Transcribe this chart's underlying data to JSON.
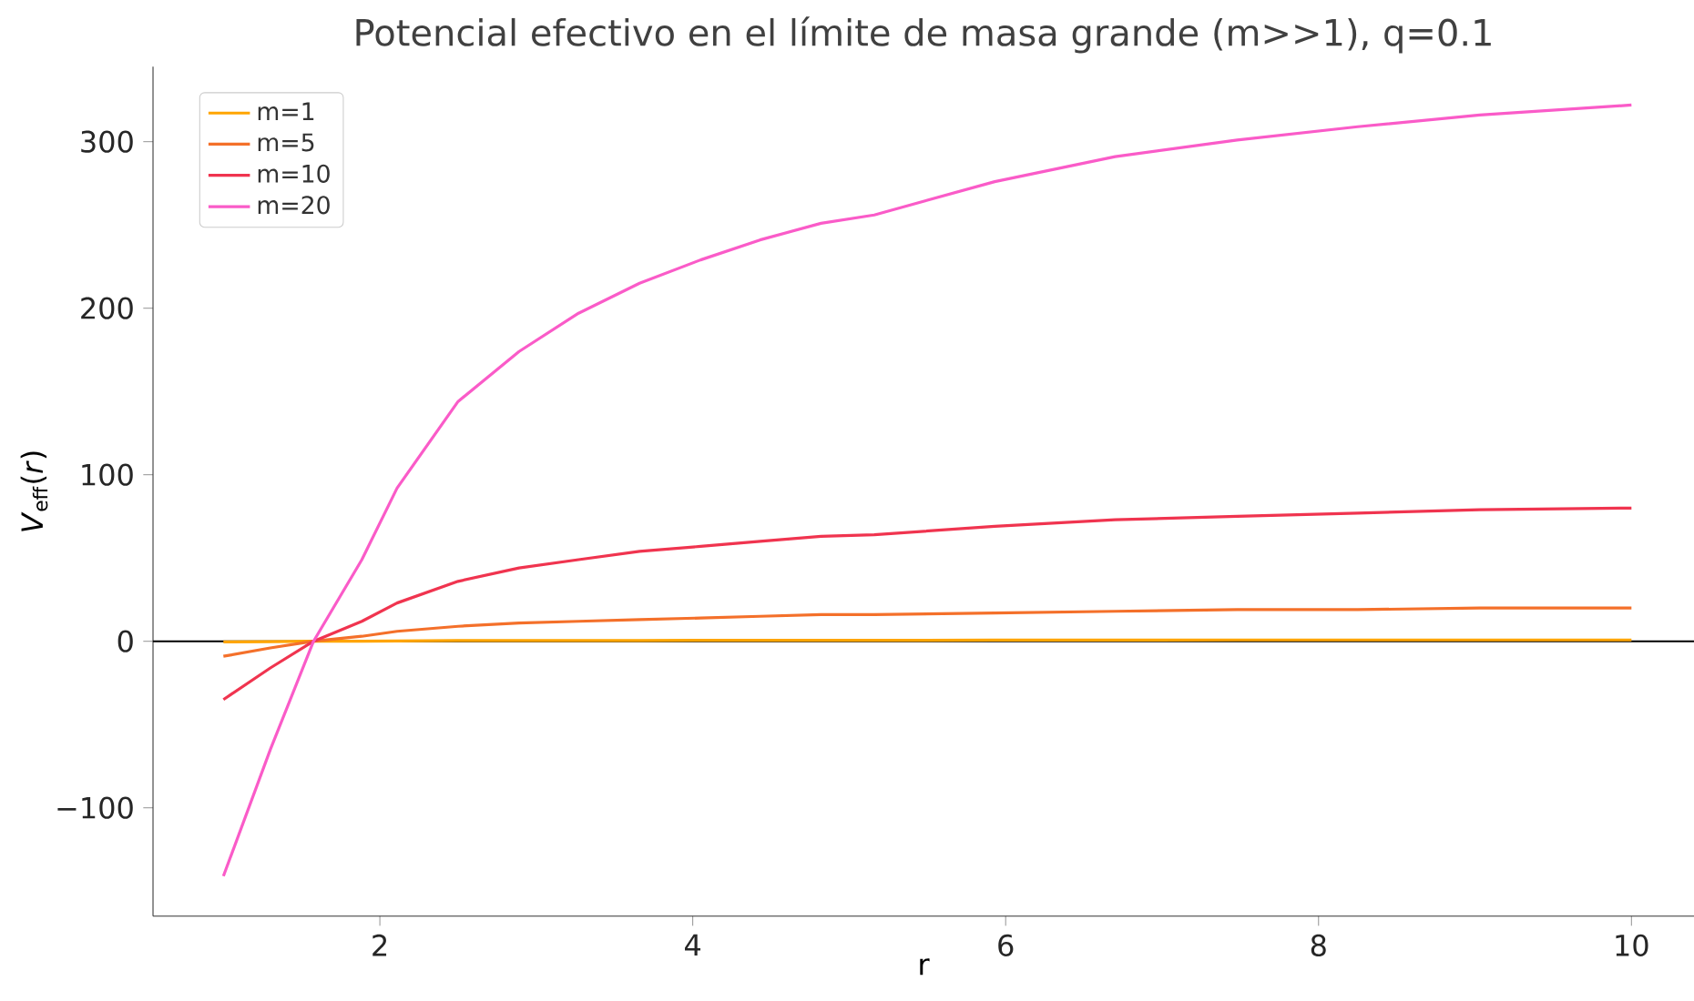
{
  "chart_data": {
    "type": "line",
    "title": "Potencial efectivo en el límite de masa grande (m>>1), q=0.1",
    "xlabel": "r",
    "ylabel": "*V*$_{eff}$(*r*)",
    "x": [
      1,
      1.3,
      1.576,
      1.885,
      2.11,
      2.5,
      2.89,
      3.27,
      3.66,
      4.05,
      4.43,
      4.82,
      5.16,
      5.93,
      6.7,
      7.48,
      8.25,
      9.03,
      10
    ],
    "series": [
      {
        "name": "m=1",
        "color": "#ffa500",
        "values": [
          -0.4,
          -0.2,
          0,
          0.1,
          0.2,
          0.4,
          0.4,
          0.5,
          0.5,
          0.6,
          0.6,
          0.6,
          0.6,
          0.7,
          0.7,
          0.8,
          0.8,
          0.8,
          0.8
        ]
      },
      {
        "name": "m=5",
        "color": "#f4702a",
        "values": [
          -9,
          -4,
          0,
          3,
          6,
          9,
          11,
          12,
          13,
          14,
          15,
          16,
          16,
          17,
          18,
          19,
          19,
          20,
          20
        ]
      },
      {
        "name": "m=10",
        "color": "#f0344f",
        "values": [
          -35,
          -16,
          0,
          12,
          23,
          36,
          44,
          49,
          54,
          57,
          60,
          63,
          64,
          69,
          73,
          75,
          77,
          79,
          80
        ]
      },
      {
        "name": "m=20",
        "color": "#fa5bc8",
        "values": [
          -141,
          -65,
          0,
          49,
          92,
          144,
          174,
          197,
          215,
          229,
          241,
          251,
          256,
          276,
          291,
          301,
          309,
          316,
          322
        ]
      }
    ],
    "xlim": [
      0.55,
      10.4
    ],
    "ylim": [
      -165,
      345
    ],
    "xticks": [
      2,
      4,
      6,
      8,
      10
    ],
    "yticks": [
      {
        "value": -100,
        "label": "−100"
      },
      0,
      100,
      200,
      300
    ],
    "ref_lines": [
      {
        "axis": "y",
        "value": 0,
        "color": "#000000"
      }
    ],
    "legend": "top left",
    "grid": false,
    "marker": "none",
    "line_style": "solid"
  }
}
